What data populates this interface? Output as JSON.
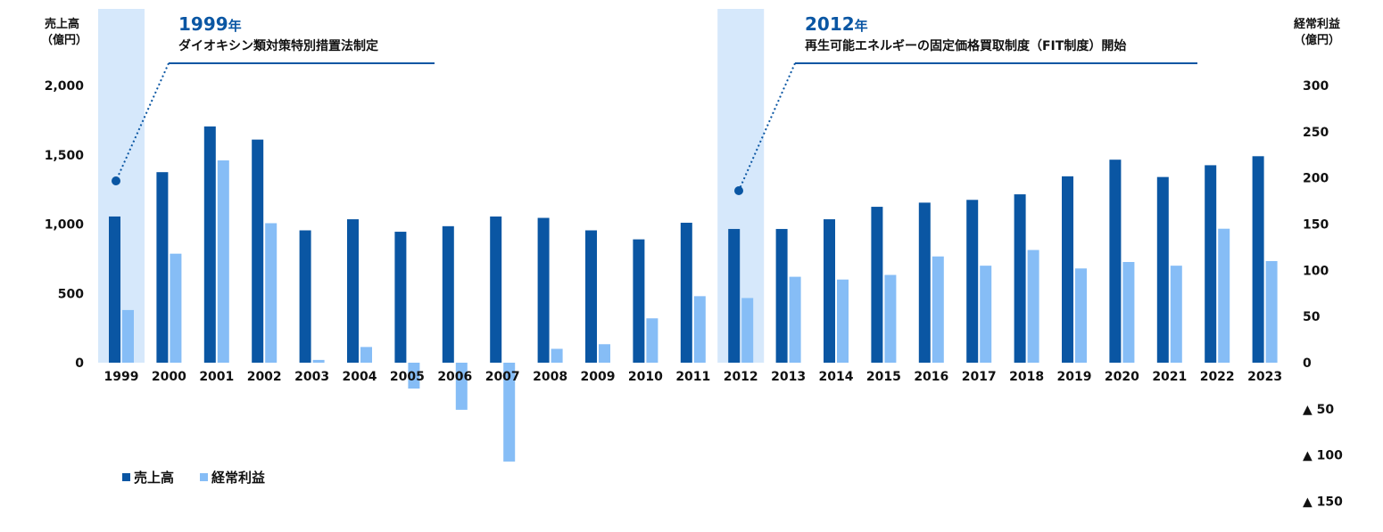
{
  "chart_data": {
    "type": "bar",
    "categories": [
      "1999",
      "2000",
      "2001",
      "2002",
      "2003",
      "2004",
      "2005",
      "2006",
      "2007",
      "2008",
      "2009",
      "2010",
      "2011",
      "2012",
      "2013",
      "2014",
      "2015",
      "2016",
      "2017",
      "2018",
      "2019",
      "2020",
      "2021",
      "2022",
      "2023"
    ],
    "series": [
      {
        "name": "売上高",
        "axis": "left",
        "color": "#0a56a3",
        "values": [
          1055,
          1375,
          1705,
          1610,
          955,
          1035,
          945,
          985,
          1055,
          1045,
          955,
          890,
          1010,
          965,
          965,
          1035,
          1125,
          1155,
          1175,
          1215,
          1345,
          1465,
          1340,
          1425,
          1490
        ]
      },
      {
        "name": "経常利益",
        "axis": "right",
        "color": "#86bdf6",
        "values": [
          57,
          118,
          219,
          151,
          3,
          17,
          -28,
          -51,
          -107,
          15,
          20,
          48,
          72,
          70,
          93,
          90,
          95,
          115,
          105,
          122,
          102,
          109,
          105,
          145,
          110
        ]
      }
    ],
    "left_axis": {
      "title": [
        "売上高",
        "（億円）"
      ],
      "ticks": [
        0,
        500,
        1000,
        1500,
        2000
      ],
      "tick_labels": [
        "0",
        "500",
        "1,000",
        "1,500",
        "2,000"
      ],
      "ylim": [
        -1150,
        2000
      ]
    },
    "right_axis": {
      "title": [
        "経常利益",
        "（億円）"
      ],
      "ticks": [
        300,
        250,
        200,
        150,
        100,
        50,
        0,
        -50,
        -100,
        -150
      ],
      "tick_labels": [
        "300",
        "250",
        "200",
        "150",
        "100",
        "50",
        "0",
        "▲ 50",
        "▲ 100",
        "▲ 150"
      ],
      "ylim": [
        -150,
        300
      ]
    },
    "highlights": [
      {
        "category": "1999",
        "year": "1999",
        "year_suffix": "年",
        "text": "ダイオキシン類対策特別措置法制定",
        "color": "#d6e8fb",
        "accent": "#0a56a3"
      },
      {
        "category": "2012",
        "year": "2012",
        "year_suffix": "年",
        "text": "再生可能エネルギーの固定価格買取制度（FIT制度）開始",
        "color": "#d6e8fb",
        "accent": "#0a56a3"
      }
    ],
    "legend_position": "bottom-left",
    "grid": false
  }
}
